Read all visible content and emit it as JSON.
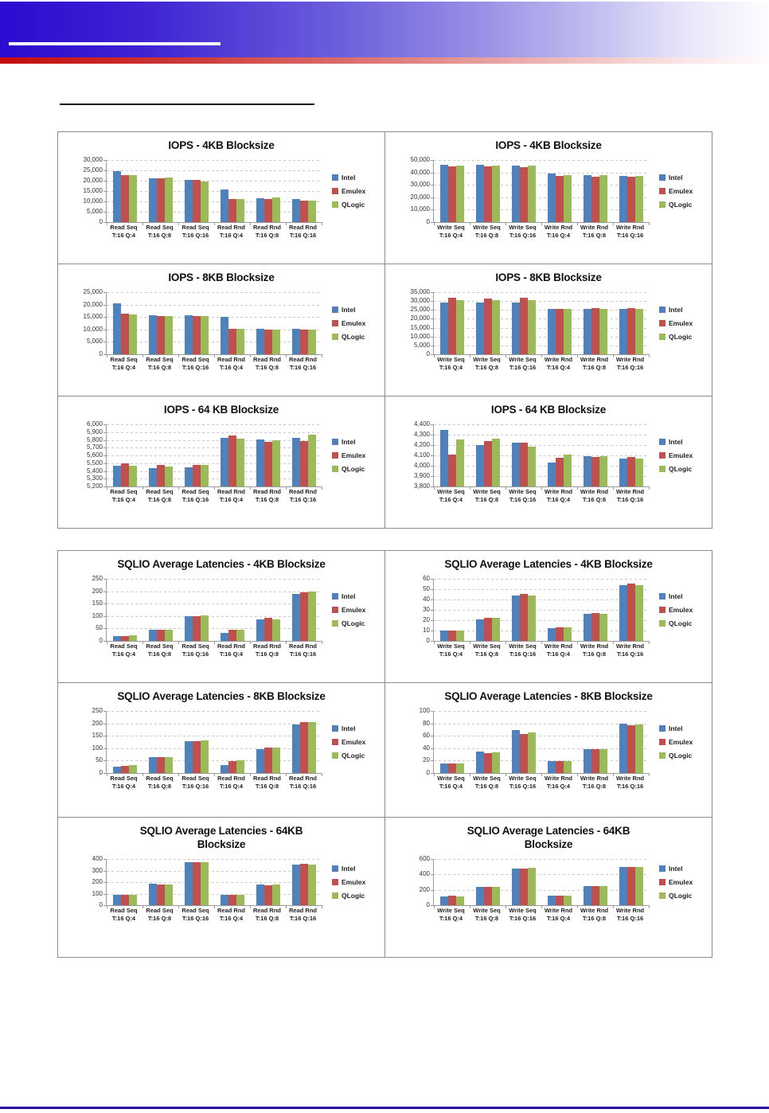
{
  "page": {
    "banner_blue_start": "#2b0bd0",
    "banner_red_start": "#c50b0b",
    "footer_rule_color": "#2e0da0",
    "grid_border_color": "#8c8c8c"
  },
  "legend": {
    "series": [
      {
        "name": "Intel",
        "color": "#4F81BD"
      },
      {
        "name": "Emulex",
        "color": "#C0504D"
      },
      {
        "name": "QLogic",
        "color": "#9BBB59"
      }
    ]
  },
  "chart_data": [
    {
      "type": "bar",
      "title": "IOPS - 4KB Blocksize",
      "ymin": 0,
      "ymax": 30000,
      "yticks": [
        "0",
        "5,000",
        "10,000",
        "15,000",
        "20,000",
        "25,000",
        "30,000"
      ],
      "categories": [
        [
          "Read Seq",
          "T:16 Q:4"
        ],
        [
          "Read Seq",
          "T:16 Q:8"
        ],
        [
          "Read Seq",
          "T:16 Q:16"
        ],
        [
          "Read Rnd",
          "T:16 Q:4"
        ],
        [
          "Read Rnd",
          "T:16 Q:8"
        ],
        [
          "Read Rnd",
          "T:16 Q:16"
        ]
      ],
      "series": [
        {
          "name": "Intel",
          "values": [
            24800,
            21000,
            20300,
            15600,
            11700,
            11100
          ]
        },
        {
          "name": "Emulex",
          "values": [
            22700,
            21000,
            20300,
            11000,
            11100,
            10200
          ]
        },
        {
          "name": "QLogic",
          "values": [
            22500,
            21500,
            19800,
            11300,
            11900,
            10200
          ]
        }
      ]
    },
    {
      "type": "bar",
      "title": "IOPS - 4KB Blocksize",
      "ymin": 0,
      "ymax": 50000,
      "yticks": [
        "0",
        "10,000",
        "20,000",
        "30,000",
        "40,000",
        "50,000"
      ],
      "categories": [
        [
          "Write Seq",
          "T:16 Q:4"
        ],
        [
          "Write Seq",
          "T:16 Q:8"
        ],
        [
          "Write Seq",
          "T:16 Q:16"
        ],
        [
          "Write Rnd",
          "T:16 Q:4"
        ],
        [
          "Write Rnd",
          "T:16 Q:8"
        ],
        [
          "Write Rnd",
          "T:16 Q:16"
        ]
      ],
      "series": [
        {
          "name": "Intel",
          "values": [
            46000,
            46200,
            45200,
            39000,
            37500,
            37000
          ]
        },
        {
          "name": "Emulex",
          "values": [
            44600,
            44700,
            44200,
            37100,
            36500,
            36400
          ]
        },
        {
          "name": "QLogic",
          "values": [
            45600,
            45700,
            45200,
            37600,
            37500,
            37000
          ]
        }
      ]
    },
    {
      "type": "bar",
      "title": "IOPS - 8KB Blocksize",
      "ymin": 0,
      "ymax": 25000,
      "yticks": [
        "0",
        "5,000",
        "10,000",
        "15,000",
        "20,000",
        "25,000"
      ],
      "categories": [
        [
          "Read Seq",
          "T:16 Q:4"
        ],
        [
          "Read Seq",
          "T:16 Q:8"
        ],
        [
          "Read Seq",
          "T:16 Q:16"
        ],
        [
          "Read Rnd",
          "T:16 Q:4"
        ],
        [
          "Read Rnd",
          "T:16 Q:8"
        ],
        [
          "Read Rnd",
          "T:16 Q:16"
        ]
      ],
      "series": [
        {
          "name": "Intel",
          "values": [
            20500,
            15600,
            15800,
            15100,
            10400,
            10400
          ]
        },
        {
          "name": "Emulex",
          "values": [
            16500,
            15300,
            15300,
            10400,
            10000,
            10000
          ]
        },
        {
          "name": "QLogic",
          "values": [
            16000,
            15300,
            15300,
            10100,
            10000,
            10000
          ]
        }
      ]
    },
    {
      "type": "bar",
      "title": "IOPS - 8KB Blocksize",
      "ymin": 0,
      "ymax": 35000,
      "yticks": [
        "0",
        "5,000",
        "10,000",
        "15,000",
        "20,000",
        "25,000",
        "30,000",
        "35,000"
      ],
      "categories": [
        [
          "Write Seq",
          "T:16 Q:4"
        ],
        [
          "Write Seq",
          "T:16 Q:8"
        ],
        [
          "Write Seq",
          "T:16 Q:16"
        ],
        [
          "Write Rnd",
          "T:16 Q:4"
        ],
        [
          "Write Rnd",
          "T:16 Q:8"
        ],
        [
          "Write Rnd",
          "T:16 Q:16"
        ]
      ],
      "series": [
        {
          "name": "Intel",
          "values": [
            29300,
            29000,
            29000,
            25800,
            25400,
            25400
          ]
        },
        {
          "name": "Emulex",
          "values": [
            32000,
            31500,
            31800,
            25800,
            25900,
            25900
          ]
        },
        {
          "name": "QLogic",
          "values": [
            30700,
            30300,
            30300,
            25400,
            25500,
            25500
          ]
        }
      ]
    },
    {
      "type": "bar",
      "title": "IOPS - 64 KB Blocksize",
      "ymin": 5200,
      "ymax": 6000,
      "yticks": [
        "5,200",
        "5,300",
        "5,400",
        "5,500",
        "5,600",
        "5,700",
        "5,800",
        "5,900",
        "6,000"
      ],
      "categories": [
        [
          "Read Seq",
          "T:16 Q:4"
        ],
        [
          "Read Seq",
          "T:16 Q:8"
        ],
        [
          "Read Seq",
          "T:16 Q:16"
        ],
        [
          "Read Rnd",
          "T:16 Q:4"
        ],
        [
          "Read Rnd",
          "T:16 Q:8"
        ],
        [
          "Read Rnd",
          "T:16 Q:16"
        ]
      ],
      "series": [
        {
          "name": "Intel",
          "values": [
            5470,
            5440,
            5450,
            5825,
            5800,
            5830
          ]
        },
        {
          "name": "Emulex",
          "values": [
            5495,
            5480,
            5480,
            5855,
            5775,
            5780
          ]
        },
        {
          "name": "QLogic",
          "values": [
            5470,
            5460,
            5480,
            5820,
            5790,
            5870
          ]
        }
      ]
    },
    {
      "type": "bar",
      "title": "IOPS - 64 KB Blocksize",
      "ymin": 3800,
      "ymax": 4400,
      "yticks": [
        "3,800",
        "3,900",
        "4,000",
        "4,100",
        "4,200",
        "4,300",
        "4,400"
      ],
      "categories": [
        [
          "Write Seq",
          "T:16 Q:4"
        ],
        [
          "Write Seq",
          "T:16 Q:8"
        ],
        [
          "Write Seq",
          "T:16 Q:16"
        ],
        [
          "Write Rnd",
          "T:16 Q:4"
        ],
        [
          "Write Rnd",
          "T:16 Q:8"
        ],
        [
          "Write Rnd",
          "T:16 Q:16"
        ]
      ],
      "series": [
        {
          "name": "Intel",
          "values": [
            4345,
            4200,
            4220,
            4030,
            4095,
            4070
          ]
        },
        {
          "name": "Emulex",
          "values": [
            4105,
            4240,
            4220,
            4075,
            4085,
            4085
          ]
        },
        {
          "name": "QLogic",
          "values": [
            4250,
            4260,
            4185,
            4105,
            4090,
            4070
          ]
        }
      ]
    },
    {
      "type": "bar",
      "title": "SQLIO Average Latencies - 4KB Blocksize",
      "ymin": 0,
      "ymax": 250,
      "yticks": [
        "0",
        "50",
        "100",
        "150",
        "200",
        "250"
      ],
      "categories": [
        [
          "Read Seq",
          "T:16 Q:4"
        ],
        [
          "Read Seq",
          "T:16 Q:8"
        ],
        [
          "Read Seq",
          "T:16 Q:16"
        ],
        [
          "Read Rnd",
          "T:16 Q:4"
        ],
        [
          "Read Rnd",
          "T:16 Q:8"
        ],
        [
          "Read Rnd",
          "T:16 Q:16"
        ]
      ],
      "series": [
        {
          "name": "Intel",
          "values": [
            20,
            46,
            99,
            33,
            87,
            188
          ]
        },
        {
          "name": "Emulex",
          "values": [
            20,
            46,
            99,
            45,
            92,
            196
          ]
        },
        {
          "name": "QLogic",
          "values": [
            22,
            45,
            101,
            44,
            85,
            199
          ]
        }
      ]
    },
    {
      "type": "bar",
      "title": "SQLIO Average Latencies - 4KB Blocksize",
      "ymin": 0,
      "ymax": 60,
      "yticks": [
        "0",
        "10",
        "20",
        "30",
        "40",
        "50",
        "60"
      ],
      "categories": [
        [
          "Write Seq",
          "T:16 Q:4"
        ],
        [
          "Write Seq",
          "T:16 Q:8"
        ],
        [
          "Write Seq",
          "T:16 Q:16"
        ],
        [
          "Write Rnd",
          "T:16 Q:4"
        ],
        [
          "Write Rnd",
          "T:16 Q:8"
        ],
        [
          "Write Rnd",
          "T:16 Q:16"
        ]
      ],
      "series": [
        {
          "name": "Intel",
          "values": [
            10,
            21,
            44,
            12,
            26,
            54
          ]
        },
        {
          "name": "Emulex",
          "values": [
            10,
            22,
            45,
            13,
            27,
            55
          ]
        },
        {
          "name": "QLogic",
          "values": [
            10,
            22,
            44,
            13,
            26,
            54
          ]
        }
      ]
    },
    {
      "type": "bar",
      "title": "SQLIO Average Latencies - 8KB Blocksize",
      "ymin": 0,
      "ymax": 250,
      "yticks": [
        "0",
        "50",
        "100",
        "150",
        "200",
        "250"
      ],
      "categories": [
        [
          "Read Seq",
          "T:16 Q:4"
        ],
        [
          "Read Seq",
          "T:16 Q:8"
        ],
        [
          "Read Seq",
          "T:16 Q:16"
        ],
        [
          "Read Rnd",
          "T:16 Q:4"
        ],
        [
          "Read Rnd",
          "T:16 Q:8"
        ],
        [
          "Read Rnd",
          "T:16 Q:16"
        ]
      ],
      "series": [
        {
          "name": "Intel",
          "values": [
            25,
            65,
            127,
            32,
            96,
            194
          ]
        },
        {
          "name": "Emulex",
          "values": [
            30,
            65,
            129,
            48,
            101,
            206
          ]
        },
        {
          "name": "QLogic",
          "values": [
            32,
            65,
            131,
            50,
            101,
            206
          ]
        }
      ]
    },
    {
      "type": "bar",
      "title": "SQLIO Average Latencies - 8KB Blocksize",
      "ymin": 0,
      "ymax": 100,
      "yticks": [
        "0",
        "20",
        "40",
        "60",
        "80",
        "100"
      ],
      "categories": [
        [
          "Write Seq",
          "T:16 Q:4"
        ],
        [
          "Write Seq",
          "T:16 Q:8"
        ],
        [
          "Write Seq",
          "T:16 Q:16"
        ],
        [
          "Write Rnd",
          "T:16 Q:4"
        ],
        [
          "Write Rnd",
          "T:16 Q:8"
        ],
        [
          "Write Rnd",
          "T:16 Q:16"
        ]
      ],
      "series": [
        {
          "name": "Intel",
          "values": [
            16,
            34,
            69,
            19,
            39,
            79
          ]
        },
        {
          "name": "Emulex",
          "values": [
            15,
            32,
            63,
            19,
            39,
            77
          ]
        },
        {
          "name": "QLogic",
          "values": [
            16,
            33,
            65,
            19,
            39,
            78
          ]
        }
      ]
    },
    {
      "type": "bar",
      "title": "SQLIO Average Latencies - 64KB",
      "title_line2": "Blocksize",
      "ymin": 0,
      "ymax": 400,
      "yticks": [
        "0",
        "100",
        "200",
        "300",
        "400"
      ],
      "categories": [
        [
          "Read Seq",
          "T:16 Q:4"
        ],
        [
          "Read Seq",
          "T:16 Q:8"
        ],
        [
          "Read Seq",
          "T:16 Q:16"
        ],
        [
          "Read Rnd",
          "T:16 Q:4"
        ],
        [
          "Read Rnd",
          "T:16 Q:8"
        ],
        [
          "Read Rnd",
          "T:16 Q:16"
        ]
      ],
      "series": [
        {
          "name": "Intel",
          "values": [
            93,
            188,
            375,
            88,
            177,
            350
          ]
        },
        {
          "name": "Emulex",
          "values": [
            93,
            182,
            370,
            88,
            175,
            357
          ]
        },
        {
          "name": "QLogic",
          "values": [
            93,
            182,
            373,
            88,
            176,
            350
          ]
        }
      ]
    },
    {
      "type": "bar",
      "title": "SQLIO Average Latencies - 64KB",
      "title_line2": "Blocksize",
      "ymin": 0,
      "ymax": 600,
      "yticks": [
        "0",
        "200",
        "400",
        "600"
      ],
      "categories": [
        [
          "Write Seq",
          "T:16 Q:4"
        ],
        [
          "Write Seq",
          "T:16 Q:8"
        ],
        [
          "Write Seq",
          "T:16 Q:16"
        ],
        [
          "Write Rnd",
          "T:16 Q:4"
        ],
        [
          "Write Rnd",
          "T:16 Q:8"
        ],
        [
          "Write Rnd",
          "T:16 Q:16"
        ]
      ],
      "series": [
        {
          "name": "Intel",
          "values": [
            115,
            240,
            480,
            125,
            250,
            500
          ]
        },
        {
          "name": "Emulex",
          "values": [
            125,
            240,
            480,
            125,
            250,
            500
          ]
        },
        {
          "name": "QLogic",
          "values": [
            115,
            240,
            490,
            125,
            250,
            500
          ]
        }
      ]
    }
  ]
}
